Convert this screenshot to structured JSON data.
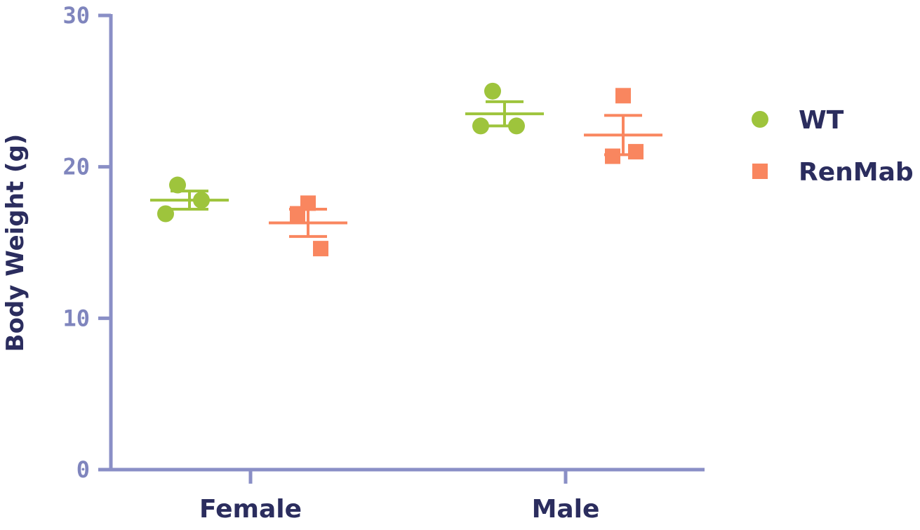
{
  "chart_data": {
    "type": "scatter",
    "ylabel": "Body Weight (g)",
    "xlabel": "",
    "title": "",
    "ylim": [
      0,
      30
    ],
    "yticks": [
      0,
      10,
      20,
      30
    ],
    "categories": [
      "Female",
      "Male"
    ],
    "grid": false,
    "legend_position": "right",
    "colors": {
      "axis": "#8a8fc6",
      "axis_text": "#7f85bd",
      "label_text": "#2b2d5e",
      "WT": "#9ec43c",
      "RenMab": "#f9865f"
    },
    "series": [
      {
        "name": "WT",
        "marker": "circle",
        "points": {
          "Female": [
            18.8,
            17.8,
            16.9
          ],
          "Male": [
            25.0,
            22.7,
            22.7
          ]
        },
        "mean": {
          "Female": 17.8,
          "Male": 23.5
        },
        "sem": {
          "Female": 0.6,
          "Male": 0.8
        }
      },
      {
        "name": "RenMab",
        "marker": "square",
        "points": {
          "Female": [
            17.6,
            16.9,
            14.6
          ],
          "Male": [
            24.7,
            20.7,
            21.0
          ]
        },
        "mean": {
          "Female": 16.3,
          "Male": 22.1
        },
        "sem": {
          "Female": 0.9,
          "Male": 1.3
        }
      }
    ]
  }
}
